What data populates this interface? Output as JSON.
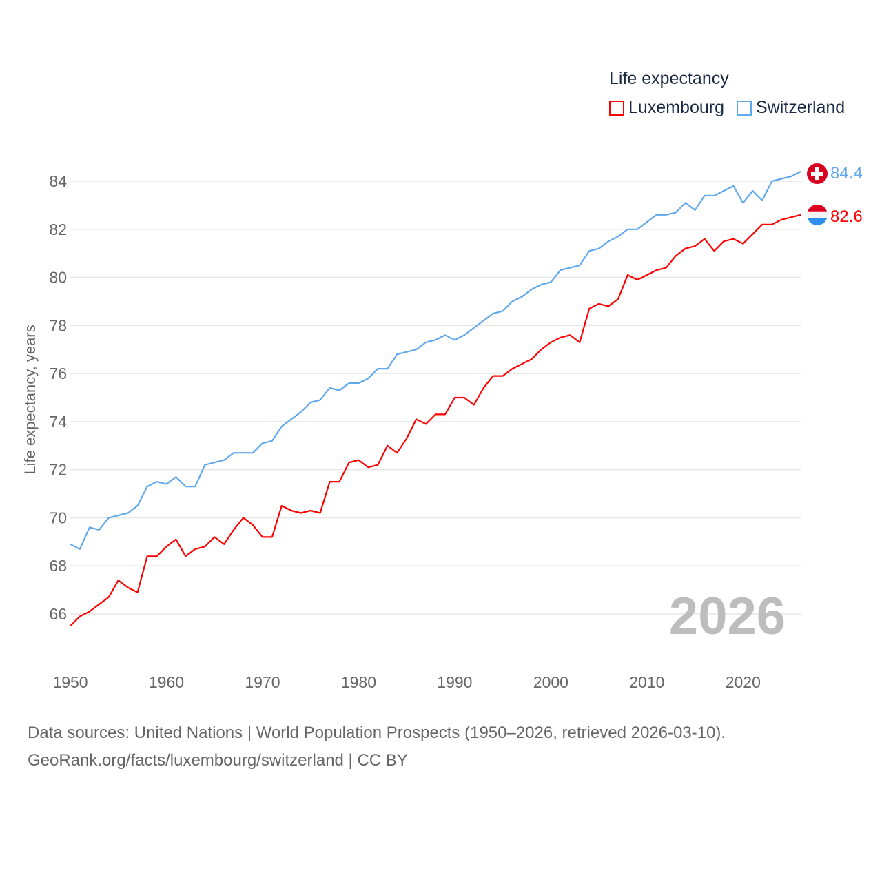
{
  "chart_data": {
    "type": "line",
    "title": "Life expectancy",
    "ylabel": "Life expectancy, years",
    "xlabel": "",
    "xlim": [
      1950,
      2026
    ],
    "ylim": [
      65.5,
      84.4
    ],
    "x_ticks": [
      1950,
      1960,
      1970,
      1980,
      1990,
      2000,
      2010,
      2020
    ],
    "y_ticks": [
      66,
      68,
      70,
      72,
      74,
      76,
      78,
      80,
      82,
      84
    ],
    "grid": true,
    "legend_placement": "top-right",
    "year_label": "2026",
    "x_start": 1950,
    "series": [
      {
        "name": "Luxembourg",
        "color": "#ff0000",
        "end_label": "82.6",
        "values": [
          65.5,
          65.9,
          66.1,
          66.4,
          66.7,
          67.4,
          67.1,
          66.9,
          68.4,
          68.4,
          68.8,
          69.1,
          68.4,
          68.7,
          68.8,
          69.2,
          68.9,
          69.5,
          70.0,
          69.7,
          69.2,
          69.2,
          70.5,
          70.3,
          70.2,
          70.3,
          70.2,
          71.5,
          71.5,
          72.3,
          72.4,
          72.1,
          72.2,
          73.0,
          72.7,
          73.3,
          74.1,
          73.9,
          74.3,
          74.3,
          75.0,
          75.0,
          74.7,
          75.4,
          75.9,
          75.9,
          76.2,
          76.4,
          76.6,
          77.0,
          77.3,
          77.5,
          77.6,
          77.3,
          78.7,
          78.9,
          78.8,
          79.1,
          80.1,
          79.9,
          80.1,
          80.3,
          80.4,
          80.9,
          81.2,
          81.3,
          81.6,
          81.1,
          81.5,
          81.6,
          81.4,
          81.8,
          82.2,
          82.2,
          82.4,
          82.5,
          82.6
        ]
      },
      {
        "name": "Switzerland",
        "color": "#5fa8ee",
        "end_label": "84.4",
        "values": [
          68.9,
          68.7,
          69.6,
          69.5,
          70.0,
          70.1,
          70.2,
          70.5,
          71.3,
          71.5,
          71.4,
          71.7,
          71.3,
          71.3,
          72.2,
          72.3,
          72.4,
          72.7,
          72.7,
          72.7,
          73.1,
          73.2,
          73.8,
          74.1,
          74.4,
          74.8,
          74.9,
          75.4,
          75.3,
          75.6,
          75.6,
          75.8,
          76.2,
          76.2,
          76.8,
          76.9,
          77.0,
          77.3,
          77.4,
          77.6,
          77.4,
          77.6,
          77.9,
          78.2,
          78.5,
          78.6,
          79.0,
          79.2,
          79.5,
          79.7,
          79.8,
          80.3,
          80.4,
          80.5,
          81.1,
          81.2,
          81.5,
          81.7,
          82.0,
          82.0,
          82.3,
          82.6,
          82.6,
          82.7,
          83.1,
          82.8,
          83.4,
          83.4,
          83.6,
          83.8,
          83.1,
          83.6,
          83.2,
          84.0,
          84.1,
          84.2,
          84.4
        ]
      }
    ]
  },
  "footer": {
    "line1": "Data sources: United Nations | World Population Prospects (1950–2026, retrieved 2026-03-10).",
    "line2": "GeoRank.org/facts/luxembourg/switzerland | CC BY"
  }
}
